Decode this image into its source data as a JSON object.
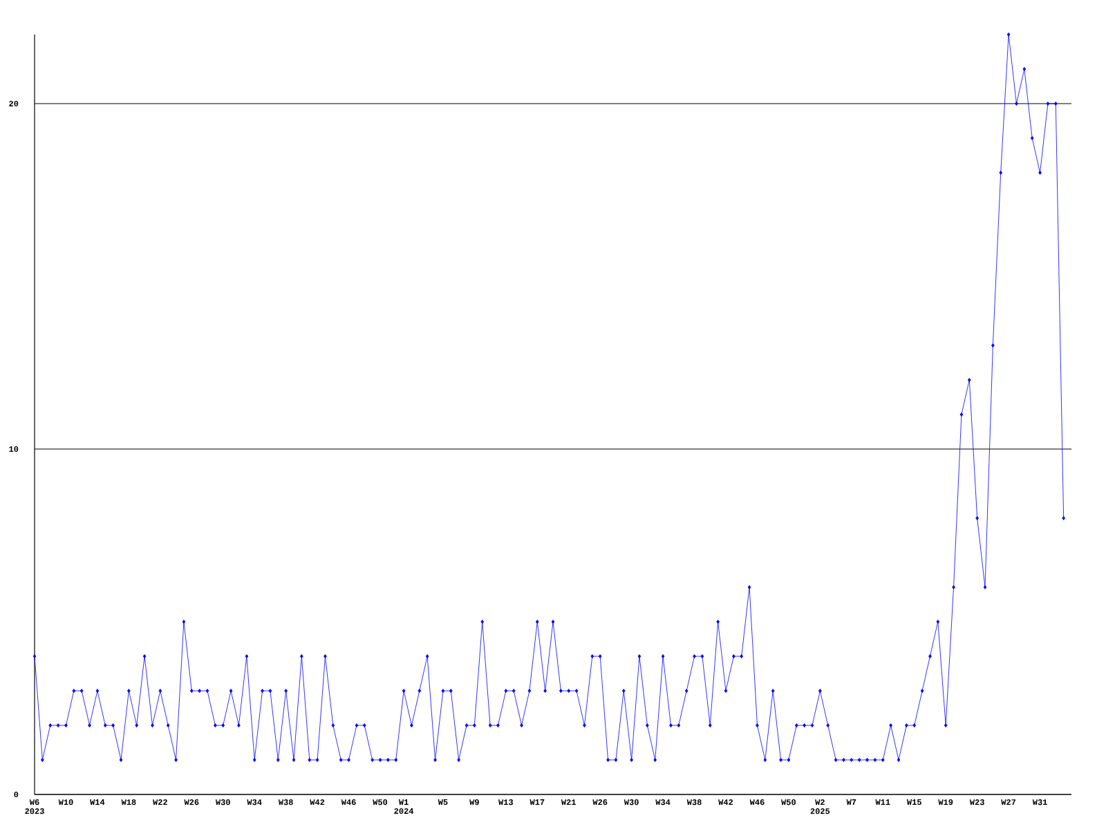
{
  "chart_data": {
    "type": "line",
    "categories": [
      "W6 2023",
      null,
      null,
      null,
      "W10",
      null,
      null,
      null,
      "W14",
      null,
      null,
      null,
      "W18",
      null,
      null,
      null,
      "W22",
      null,
      null,
      null,
      "W26",
      null,
      null,
      null,
      "W30",
      null,
      null,
      null,
      "W34",
      null,
      null,
      null,
      "W38",
      null,
      null,
      null,
      "W42",
      null,
      null,
      null,
      "W46",
      null,
      null,
      null,
      "W50",
      null,
      null,
      "W1 2024",
      null,
      null,
      null,
      null,
      "W5",
      null,
      null,
      null,
      "W9",
      null,
      null,
      null,
      "W13",
      null,
      null,
      null,
      "W17",
      null,
      null,
      null,
      "W21",
      null,
      null,
      null,
      "W26",
      null,
      null,
      null,
      "W30",
      null,
      null,
      null,
      "W34",
      null,
      null,
      null,
      "W38",
      null,
      null,
      null,
      "W42",
      null,
      null,
      null,
      "W46",
      null,
      null,
      null,
      "W50",
      null,
      null,
      null,
      "W2 2025",
      null,
      null,
      null,
      "W7",
      null,
      null,
      null,
      "W11",
      null,
      null,
      null,
      "W15",
      null,
      null,
      null,
      "W19",
      null,
      null,
      null,
      "W23",
      null,
      null,
      null,
      "W27",
      null,
      null,
      null,
      "W31",
      null,
      null,
      null
    ],
    "values": [
      4,
      1,
      2,
      2,
      2,
      3,
      3,
      2,
      3,
      2,
      2,
      1,
      3,
      2,
      4,
      2,
      3,
      2,
      1,
      5,
      3,
      3,
      3,
      2,
      2,
      3,
      2,
      4,
      1,
      3,
      3,
      1,
      3,
      1,
      4,
      1,
      1,
      4,
      2,
      1,
      1,
      2,
      2,
      1,
      1,
      1,
      1,
      3,
      2,
      3,
      4,
      1,
      3,
      3,
      1,
      2,
      2,
      5,
      2,
      2,
      3,
      3,
      2,
      3,
      5,
      3,
      5,
      3,
      3,
      3,
      2,
      4,
      4,
      1,
      1,
      3,
      1,
      4,
      2,
      1,
      4,
      2,
      2,
      3,
      4,
      4,
      2,
      5,
      3,
      4,
      4,
      6,
      2,
      1,
      3,
      1,
      1,
      2,
      2,
      2,
      3,
      2,
      1,
      1,
      1,
      1,
      1,
      1,
      1,
      2,
      1,
      2,
      2,
      3,
      4,
      5,
      2,
      6,
      11,
      12,
      8,
      6,
      13,
      18,
      22,
      20,
      21,
      19,
      18,
      20,
      20,
      8
    ],
    "color": "#0000ff",
    "ylim": [
      0,
      22
    ],
    "yticks": [
      0,
      10,
      20
    ],
    "grid": "y",
    "marker": "diamond"
  }
}
